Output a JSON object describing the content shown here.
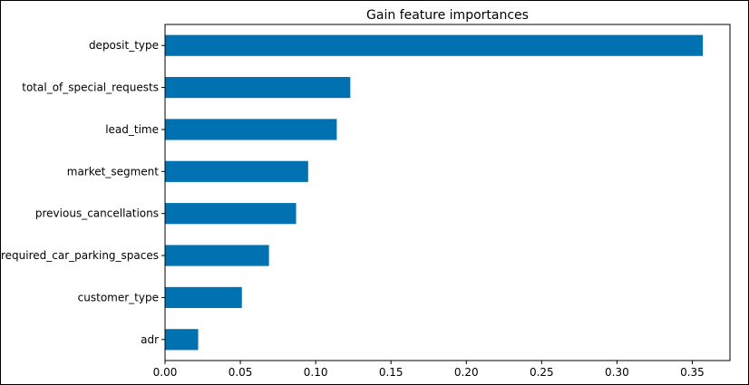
{
  "chart_data": {
    "type": "bar",
    "orientation": "horizontal",
    "title": "Gain feature importances",
    "xlabel": "",
    "ylabel": "",
    "categories": [
      "deposit_type",
      "total_of_special_requests",
      "lead_time",
      "market_segment",
      "previous_cancellations",
      "required_car_parking_spaces",
      "customer_type",
      "adr"
    ],
    "values": [
      0.357,
      0.123,
      0.114,
      0.095,
      0.087,
      0.069,
      0.051,
      0.022
    ],
    "xlim": [
      0.0,
      0.375
    ],
    "xticks": [
      "0.00",
      "0.05",
      "0.10",
      "0.15",
      "0.20",
      "0.25",
      "0.30",
      "0.35"
    ],
    "bar_color": "#0072b2",
    "grid": false,
    "legend": "none"
  }
}
